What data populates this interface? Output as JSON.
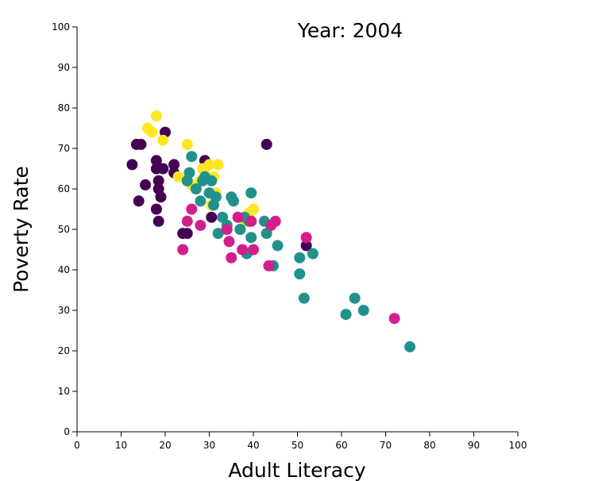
{
  "chart_data": {
    "type": "scatter",
    "title": "Year: 2004",
    "xlabel": "Adult Literacy",
    "ylabel": "Poverty Rate",
    "xlim": [
      0,
      100
    ],
    "ylim": [
      0,
      100
    ],
    "xticks": [
      0,
      10,
      20,
      30,
      40,
      50,
      60,
      70,
      80,
      90,
      100
    ],
    "yticks": [
      0,
      10,
      20,
      30,
      40,
      50,
      60,
      70,
      80,
      90,
      100
    ],
    "grid": false,
    "legend": "none",
    "series": [
      {
        "color": "#440154",
        "points": [
          [
            12.5,
            66
          ],
          [
            13.5,
            71
          ],
          [
            14,
            57
          ],
          [
            14.5,
            71
          ],
          [
            15.5,
            61
          ],
          [
            18,
            67
          ],
          [
            18,
            65
          ],
          [
            18,
            55
          ],
          [
            18.5,
            60
          ],
          [
            18.5,
            62
          ],
          [
            18.5,
            52
          ],
          [
            19,
            58
          ],
          [
            19.5,
            65
          ],
          [
            20,
            74
          ],
          [
            22,
            66
          ],
          [
            22,
            64
          ],
          [
            24,
            49
          ],
          [
            25,
            49
          ],
          [
            29,
            67
          ],
          [
            30.5,
            53
          ],
          [
            43,
            71
          ],
          [
            52,
            46
          ]
        ]
      },
      {
        "color": "#fde725",
        "points": [
          [
            16,
            75
          ],
          [
            17,
            74
          ],
          [
            18,
            78
          ],
          [
            19.5,
            72
          ],
          [
            23,
            63
          ],
          [
            25,
            71
          ],
          [
            26,
            61
          ],
          [
            27,
            60
          ],
          [
            28,
            62
          ],
          [
            28.5,
            65
          ],
          [
            29,
            65
          ],
          [
            30,
            66
          ],
          [
            30.5,
            56
          ],
          [
            31,
            63
          ],
          [
            31.5,
            59
          ],
          [
            32,
            66
          ],
          [
            38,
            52
          ],
          [
            39,
            54
          ],
          [
            40,
            55
          ],
          [
            44,
            51
          ]
        ]
      },
      {
        "color": "#21918c",
        "points": [
          [
            25,
            62
          ],
          [
            25.5,
            64
          ],
          [
            26,
            68
          ],
          [
            27,
            60
          ],
          [
            28,
            57
          ],
          [
            28.5,
            62
          ],
          [
            29,
            63
          ],
          [
            30,
            59
          ],
          [
            30.5,
            62
          ],
          [
            31,
            56
          ],
          [
            31.5,
            58
          ],
          [
            32,
            49
          ],
          [
            33,
            53
          ],
          [
            34,
            51
          ],
          [
            35,
            58
          ],
          [
            35.5,
            57
          ],
          [
            37,
            50
          ],
          [
            38,
            53
          ],
          [
            38.5,
            44
          ],
          [
            39,
            52
          ],
          [
            39.5,
            48
          ],
          [
            39.5,
            59
          ],
          [
            42.5,
            52
          ],
          [
            43,
            49
          ],
          [
            44.5,
            41
          ],
          [
            45.5,
            46
          ],
          [
            50.5,
            43
          ],
          [
            50.5,
            39
          ],
          [
            51.5,
            33
          ],
          [
            53.5,
            44
          ],
          [
            61,
            29
          ],
          [
            63,
            33
          ],
          [
            65,
            30
          ],
          [
            75.5,
            21
          ]
        ]
      },
      {
        "color": "#d21f8c",
        "points": [
          [
            24,
            45
          ],
          [
            25,
            52
          ],
          [
            26,
            55
          ],
          [
            28,
            51
          ],
          [
            34,
            50
          ],
          [
            34.5,
            47
          ],
          [
            35,
            43
          ],
          [
            36.5,
            53
          ],
          [
            37.5,
            45
          ],
          [
            39.5,
            52
          ],
          [
            40,
            45
          ],
          [
            43.5,
            41
          ],
          [
            44,
            51
          ],
          [
            45,
            52
          ],
          [
            52,
            48
          ],
          [
            72,
            28
          ]
        ]
      }
    ]
  }
}
